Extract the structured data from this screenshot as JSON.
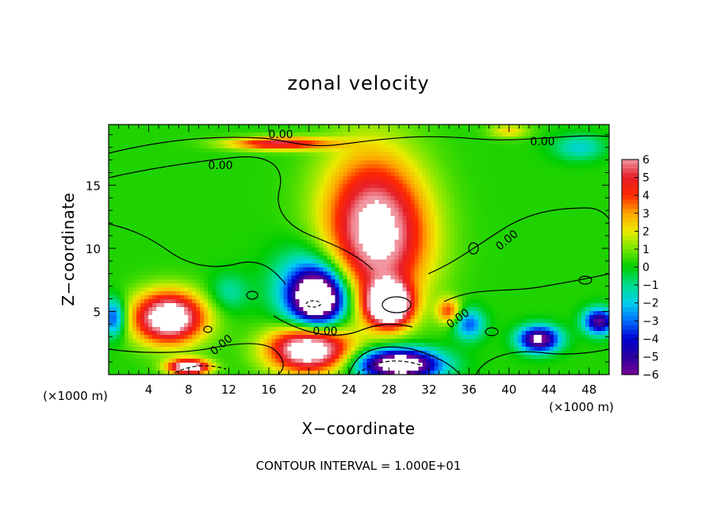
{
  "chart_data": {
    "type": "heatmap",
    "title": "zonal velocity",
    "xlabel": "X−coordinate",
    "ylabel": "Z−coordinate",
    "x_unit_left": "(×1000 m)",
    "x_unit_right": "(×1000 m)",
    "x_ticks": [
      "4",
      "8",
      "12",
      "16",
      "20",
      "24",
      "28",
      "32",
      "36",
      "40",
      "44",
      "48"
    ],
    "y_ticks": [
      "5",
      "10",
      "15"
    ],
    "xlim": [
      0,
      50
    ],
    "ylim": [
      0,
      19.8
    ],
    "colorbar": {
      "ticks": [
        "6",
        "5",
        "4",
        "3",
        "2",
        "1",
        "0",
        "−1",
        "−2",
        "−3",
        "−4",
        "−5",
        "−6"
      ],
      "range": [
        -6,
        6
      ]
    },
    "contour_labels": [
      "0.00",
      "0.00",
      "0.00",
      "0.00",
      "0.00",
      "0.00",
      "0.00"
    ],
    "note": "CONTOUR INTERVAL = 1.000E+01",
    "features": [
      {
        "x": 27,
        "z": 10.5,
        "rx": 5.0,
        "rz": 5.0,
        "value": 5.8
      },
      {
        "x": 26,
        "z": 14.5,
        "rx": 5.0,
        "rz": 5.0,
        "value": 2.3
      },
      {
        "x": 17,
        "z": 18.3,
        "rx": 5.0,
        "rz": 0.5,
        "value": 5.0
      },
      {
        "x": 21,
        "z": 6.0,
        "rx": 2.5,
        "rz": 2.0,
        "value": -8.5
      },
      {
        "x": 20,
        "z": 7.0,
        "rx": 3.5,
        "rz": 3.0,
        "value": -3.5
      },
      {
        "x": 28,
        "z": 5.5,
        "rx": 2.2,
        "rz": 1.7,
        "value": 9.0
      },
      {
        "x": 6,
        "z": 4.5,
        "rx": 3.5,
        "rz": 2.0,
        "value": 8.0
      },
      {
        "x": 20,
        "z": 2.0,
        "rx": 4.0,
        "rz": 1.8,
        "value": 8.0
      },
      {
        "x": 29,
        "z": 0.8,
        "rx": 4.0,
        "rz": 1.2,
        "value": -9.0
      },
      {
        "x": 8,
        "z": 0.6,
        "rx": 2.0,
        "rz": 0.6,
        "value": 8.0
      },
      {
        "x": 43,
        "z": 2.8,
        "rx": 2.0,
        "rz": 1.0,
        "value": -7.0
      },
      {
        "x": 49,
        "z": 4.2,
        "rx": 1.5,
        "rz": 1.0,
        "value": -6.0
      },
      {
        "x": 0.5,
        "z": 4.5,
        "rx": 1.2,
        "rz": 1.5,
        "value": -4.0
      },
      {
        "x": 36,
        "z": 4.0,
        "rx": 1.5,
        "rz": 1.2,
        "value": -3.5
      },
      {
        "x": 34,
        "z": 5.0,
        "rx": 1.2,
        "rz": 1.0,
        "value": 3.5
      },
      {
        "x": 47,
        "z": 18.0,
        "rx": 2.5,
        "rz": 1.0,
        "value": -2.0
      },
      {
        "x": 40,
        "z": 19.3,
        "rx": 2.0,
        "rz": 0.6,
        "value": 2.0
      },
      {
        "x": 12,
        "z": 6.5,
        "rx": 2.0,
        "rz": 1.5,
        "value": -1.5
      }
    ]
  }
}
